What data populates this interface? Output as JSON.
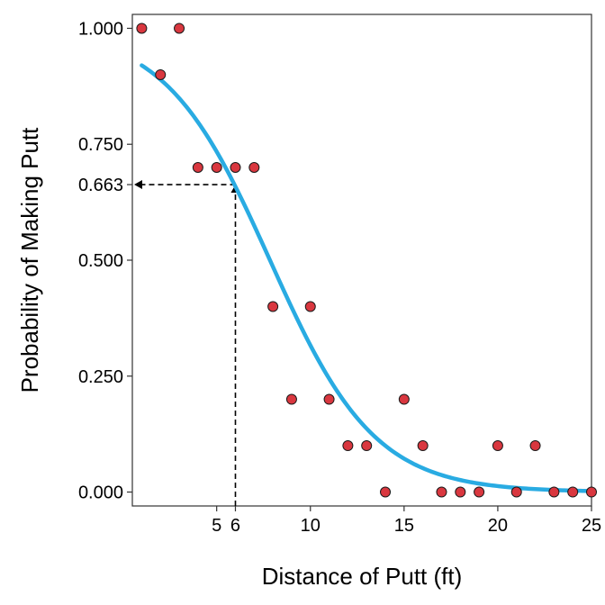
{
  "chart_data": {
    "type": "scatter",
    "xlabel": "Distance of Putt (ft)",
    "ylabel": "Probability of Making Putt",
    "xlim": [
      0.5,
      25
    ],
    "ylim": [
      -0.03,
      1.03
    ],
    "x_ticks": [
      5,
      6,
      10,
      15,
      20,
      25
    ],
    "x_tick_labels": [
      "5",
      "6",
      "10",
      "15",
      "20",
      "25"
    ],
    "y_ticks": [
      0.0,
      0.25,
      0.5,
      0.663,
      0.75,
      1.0
    ],
    "y_tick_labels": [
      "0.000",
      "0.250",
      "0.500",
      "0.663",
      "0.750",
      "1.000"
    ],
    "grid": false,
    "points": [
      {
        "x": 1,
        "y": 1.0
      },
      {
        "x": 2,
        "y": 0.9
      },
      {
        "x": 3,
        "y": 1.0
      },
      {
        "x": 4,
        "y": 0.7
      },
      {
        "x": 5,
        "y": 0.7
      },
      {
        "x": 6,
        "y": 0.7
      },
      {
        "x": 7,
        "y": 0.7
      },
      {
        "x": 8,
        "y": 0.4
      },
      {
        "x": 9,
        "y": 0.2
      },
      {
        "x": 10,
        "y": 0.4
      },
      {
        "x": 11,
        "y": 0.2
      },
      {
        "x": 12,
        "y": 0.1
      },
      {
        "x": 13,
        "y": 0.1
      },
      {
        "x": 14,
        "y": 0.0
      },
      {
        "x": 15,
        "y": 0.2
      },
      {
        "x": 16,
        "y": 0.1
      },
      {
        "x": 17,
        "y": 0.0
      },
      {
        "x": 18,
        "y": 0.0
      },
      {
        "x": 19,
        "y": 0.0
      },
      {
        "x": 20,
        "y": 0.1
      },
      {
        "x": 21,
        "y": 0.0
      },
      {
        "x": 22,
        "y": 0.1
      },
      {
        "x": 23,
        "y": 0.0
      },
      {
        "x": 24,
        "y": 0.0
      },
      {
        "x": 25,
        "y": 0.0
      }
    ],
    "fit_curve": {
      "type": "logistic",
      "intercept": 2.8,
      "slope": -0.357,
      "x_range": [
        1,
        25
      ]
    },
    "annotation": {
      "x": 6,
      "y": 0.663
    },
    "colors": {
      "points": "#d9373f",
      "point_outline": "#1a1a1a",
      "curve": "#29abe2",
      "annotation": "#000000"
    }
  }
}
